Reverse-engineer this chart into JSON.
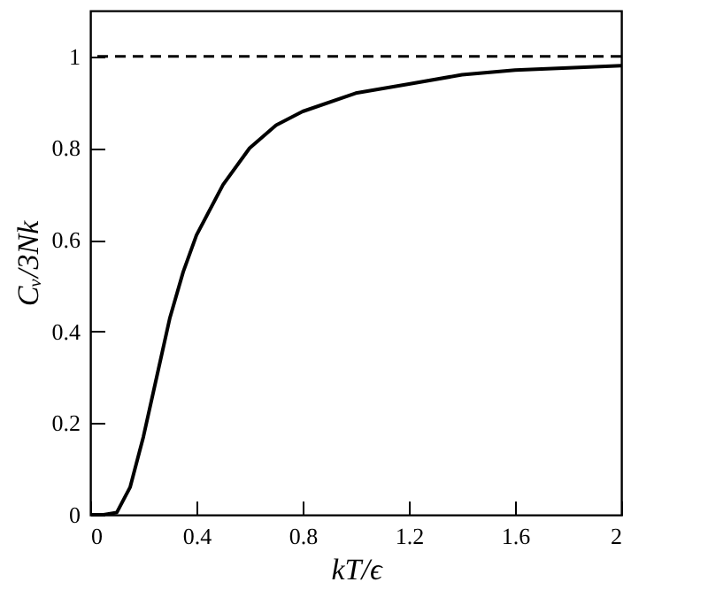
{
  "chart_data": {
    "type": "line",
    "xlabel": "kT/ϵ",
    "ylabel": "Cᵥ/3Nk",
    "x": [
      0,
      0.05,
      0.1,
      0.15,
      0.2,
      0.25,
      0.3,
      0.35,
      0.4,
      0.5,
      0.6,
      0.7,
      0.8,
      1.0,
      1.2,
      1.4,
      1.6,
      1.8,
      2.0
    ],
    "series": [
      {
        "color": "#000000",
        "values": [
          0,
          0,
          0.005,
          0.06,
          0.17,
          0.3,
          0.43,
          0.53,
          0.61,
          0.72,
          0.8,
          0.85,
          0.88,
          0.92,
          0.94,
          0.96,
          0.97,
          0.975,
          0.98
        ]
      }
    ],
    "xlim": [
      0,
      2
    ],
    "xticks": [
      0,
      0.4,
      0.8,
      1.2,
      1.6,
      2
    ],
    "ylim": [
      0,
      1.1
    ],
    "yticks": [
      0,
      0.2,
      0.4,
      0.6,
      0.8,
      1
    ],
    "ref_lines": [
      {
        "axis": "y",
        "value": 1,
        "line_style": "dashed",
        "color": "#000000"
      }
    ],
    "grid": false,
    "line_style": "solid",
    "marker": "none"
  }
}
